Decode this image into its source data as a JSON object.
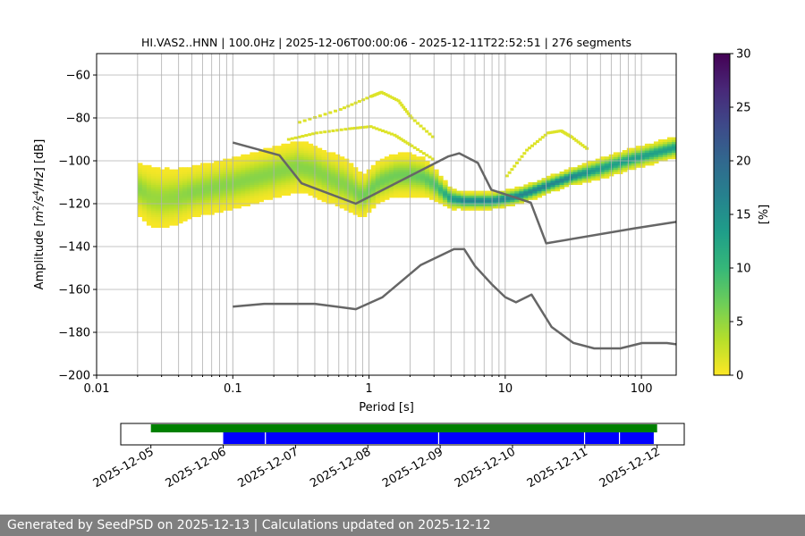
{
  "chart_data": [
    {
      "type": "heatmap",
      "title": "HI.VAS2..HNN | 100.0Hz | 2025-12-06T00:00:06 - 2025-12-11T22:52:51 | 276 segments",
      "xlabel": "Period [s]",
      "ylabel_parts": [
        "Amplitude [",
        "m",
        "2",
        "/s",
        "4",
        "/Hz",
        "] [dB]"
      ],
      "xscale": "log",
      "xlim": [
        0.01,
        180
      ],
      "ylim": [
        -200,
        -50
      ],
      "x_ticks": [
        0.01,
        0.1,
        1,
        10,
        100
      ],
      "x_tick_labels": [
        "0.01",
        "0.1",
        "1",
        "10",
        "100"
      ],
      "y_ticks": [
        -200,
        -180,
        -160,
        -140,
        -120,
        -100,
        -80,
        -60
      ],
      "y_tick_labels": [
        "−200",
        "−180",
        "−160",
        "−140",
        "−120",
        "−100",
        "−80",
        "−60"
      ],
      "grid": true,
      "density_band": {
        "colormap": "viridis_r",
        "mode_curve": {
          "period": [
            0.02,
            0.025,
            0.03,
            0.04,
            0.05,
            0.07,
            0.1,
            0.15,
            0.2,
            0.3,
            0.4,
            0.5,
            0.7,
            0.9,
            1.2,
            1.6,
            2,
            2.5,
            3,
            3.5,
            4,
            5,
            6,
            7,
            8,
            10,
            12,
            15,
            20,
            30,
            50,
            80,
            120,
            180
          ],
          "db": [
            -113,
            -117,
            -118,
            -117,
            -115,
            -113,
            -111,
            -108,
            -106,
            -103,
            -105,
            -108,
            -112,
            -117,
            -110,
            -107,
            -107,
            -108,
            -111,
            -115,
            -118,
            -119,
            -119,
            -119,
            -119,
            -118,
            -117,
            -115,
            -112,
            -108,
            -104,
            -100,
            -97,
            -94
          ]
        },
        "spread_db": [
          12,
          14,
          14,
          13,
          12,
          12,
          12,
          12,
          12,
          12,
          12,
          12,
          12,
          10,
          10,
          10,
          10,
          9,
          8,
          6,
          5,
          4,
          4,
          4,
          4,
          4,
          4,
          4,
          4,
          4,
          5,
          5,
          5,
          5
        ],
        "outliers": [
          {
            "period": [
              0.3,
              0.6,
              1.0,
              1.2,
              1.6,
              2.0,
              3.0
            ],
            "db": [
              -82,
              -76,
              -70,
              -68,
              -72,
              -80,
              -90
            ]
          },
          {
            "period": [
              0.25,
              0.4,
              0.7,
              1.0,
              1.5,
              2.0,
              3.0
            ],
            "db": [
              -90,
              -87,
              -85,
              -84,
              -88,
              -93,
              -100
            ]
          },
          {
            "period": [
              10,
              14,
              20,
              25,
              30,
              40
            ],
            "db": [
              -107,
              -95,
              -87,
              -86,
              -89,
              -95
            ]
          }
        ]
      },
      "colorbar": {
        "label": "[%]",
        "min": 0,
        "max": 30,
        "ticks": [
          0,
          5,
          10,
          15,
          20,
          25,
          30
        ]
      },
      "series": [
        {
          "type": "line",
          "color": "#666666",
          "x": [
            0.1,
            0.17,
            0.4,
            0.8,
            1.25,
            2.4,
            4.2,
            5.0,
            6.0,
            8.0,
            10.0,
            12.0,
            15.6,
            21.9,
            31.6,
            45.0,
            70.0,
            101.0,
            154.0,
            180.0
          ],
          "y": [
            -168,
            -166.7,
            -166.7,
            -169.2,
            -163.7,
            -148.6,
            -141.2,
            -141.2,
            -149.1,
            -157.7,
            -163.6,
            -166.0,
            -162.4,
            -177.5,
            -184.9,
            -187.5,
            -187.5,
            -185.0,
            -185.0,
            -185.6
          ]
        },
        {
          "type": "line",
          "color": "#666666",
          "x": [
            0.1,
            0.22,
            0.32,
            0.8,
            3.8,
            4.6,
            6.3,
            7.9,
            15.4,
            20.0,
            89.0,
            180.0
          ],
          "y": [
            -91.5,
            -97.4,
            -110.5,
            -120.0,
            -98.0,
            -96.5,
            -101.0,
            -113.5,
            -119.5,
            -138.5,
            -131.5,
            -128.5
          ]
        }
      ]
    },
    {
      "type": "timeline",
      "x_tick_labels": [
        "2025-12-05",
        "2025-12-06",
        "2025-12-07",
        "2025-12-08",
        "2025-12-09",
        "2025-12-10",
        "2025-12-11",
        "2025-12-12"
      ],
      "x_range": [
        "2025-12-04T14:00:00",
        "2025-12-12T09:00:00"
      ],
      "bars": [
        {
          "color": "#008000",
          "start": "2025-12-05T00:00:00",
          "end": "2025-12-12T00:00:00"
        },
        {
          "color": "#0000ff",
          "start": "2025-12-06T00:00:06",
          "end": "2025-12-11T22:52:51",
          "gaps": [
            "2025-12-06T14:00:00",
            "2025-12-08T23:30:00",
            "2025-12-10T23:55:00",
            "2025-12-11T11:30:00"
          ]
        }
      ]
    }
  ],
  "footer": {
    "text": "Generated by SeedPSD on 2025-12-13 | Calculations updated on 2025-12-12"
  }
}
